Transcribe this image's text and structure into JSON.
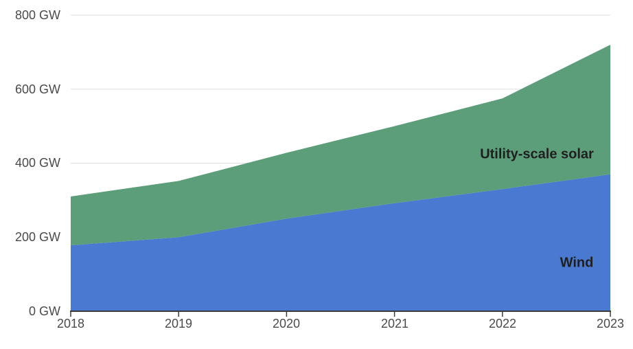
{
  "chart_data": {
    "type": "area",
    "stacked": true,
    "title": "",
    "x": [
      2018,
      2019,
      2020,
      2021,
      2022,
      2023
    ],
    "x_labels": [
      "2018",
      "2019",
      "2020",
      "2021",
      "2022",
      "2023"
    ],
    "series": [
      {
        "name": "Wind",
        "values": [
          178,
          200,
          250,
          292,
          330,
          370
        ],
        "color": "#4a79d1"
      },
      {
        "name": "Utility-scale solar",
        "values": [
          132,
          152,
          178,
          208,
          245,
          350
        ],
        "color": "#5b9e79"
      }
    ],
    "ylim": [
      0,
      800
    ],
    "ytick_values": [
      800,
      600,
      400,
      200,
      0
    ],
    "ytick_labels": [
      "800 GW",
      "600 GW",
      "400 GW",
      "200 GW",
      "0 GW"
    ],
    "grid": "horizontal",
    "gridline_color": "#e0e0e0",
    "axis_color": "#3c3c3c",
    "tick_label_color": "#4a4a4a",
    "legend_position": "inline-annotations",
    "annotations": [
      {
        "text": "Utility-scale solar",
        "series": "Utility-scale solar"
      },
      {
        "text": "Wind",
        "series": "Wind"
      }
    ]
  }
}
